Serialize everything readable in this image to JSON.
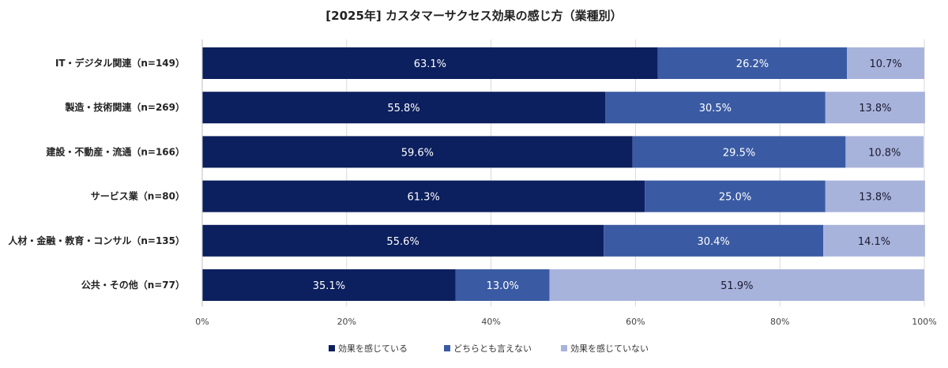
{
  "chart_data": {
    "type": "bar",
    "orientation": "horizontal",
    "stacked": true,
    "title": "[2025年] カスタマーサクセス効果の感じ方（業種別）",
    "categories": [
      "IT・デジタル関連（n=149）",
      "製造・技術関連（n=269）",
      "建設・不動産・流通（n=166）",
      "サービス業（n=80）",
      "人材・金融・教育・コンサル（n=135）",
      "公共・その他（n=77）"
    ],
    "series": [
      {
        "name": "効果を感じている",
        "color": "#0c1f5e",
        "values": [
          63.1,
          55.8,
          59.6,
          61.3,
          55.6,
          35.1
        ]
      },
      {
        "name": "どちらとも言えない",
        "color": "#3a5ba3",
        "values": [
          26.2,
          30.5,
          29.5,
          25.0,
          30.4,
          13.0
        ]
      },
      {
        "name": "効果を感じていない",
        "color": "#a8b3dc",
        "values": [
          10.7,
          13.8,
          10.8,
          13.8,
          14.1,
          51.9
        ]
      }
    ],
    "xlim": [
      0,
      100
    ],
    "xticks": [
      "0%",
      "20%",
      "40%",
      "60%",
      "80%",
      "100%"
    ],
    "grid": true,
    "legend_position": "bottom"
  }
}
